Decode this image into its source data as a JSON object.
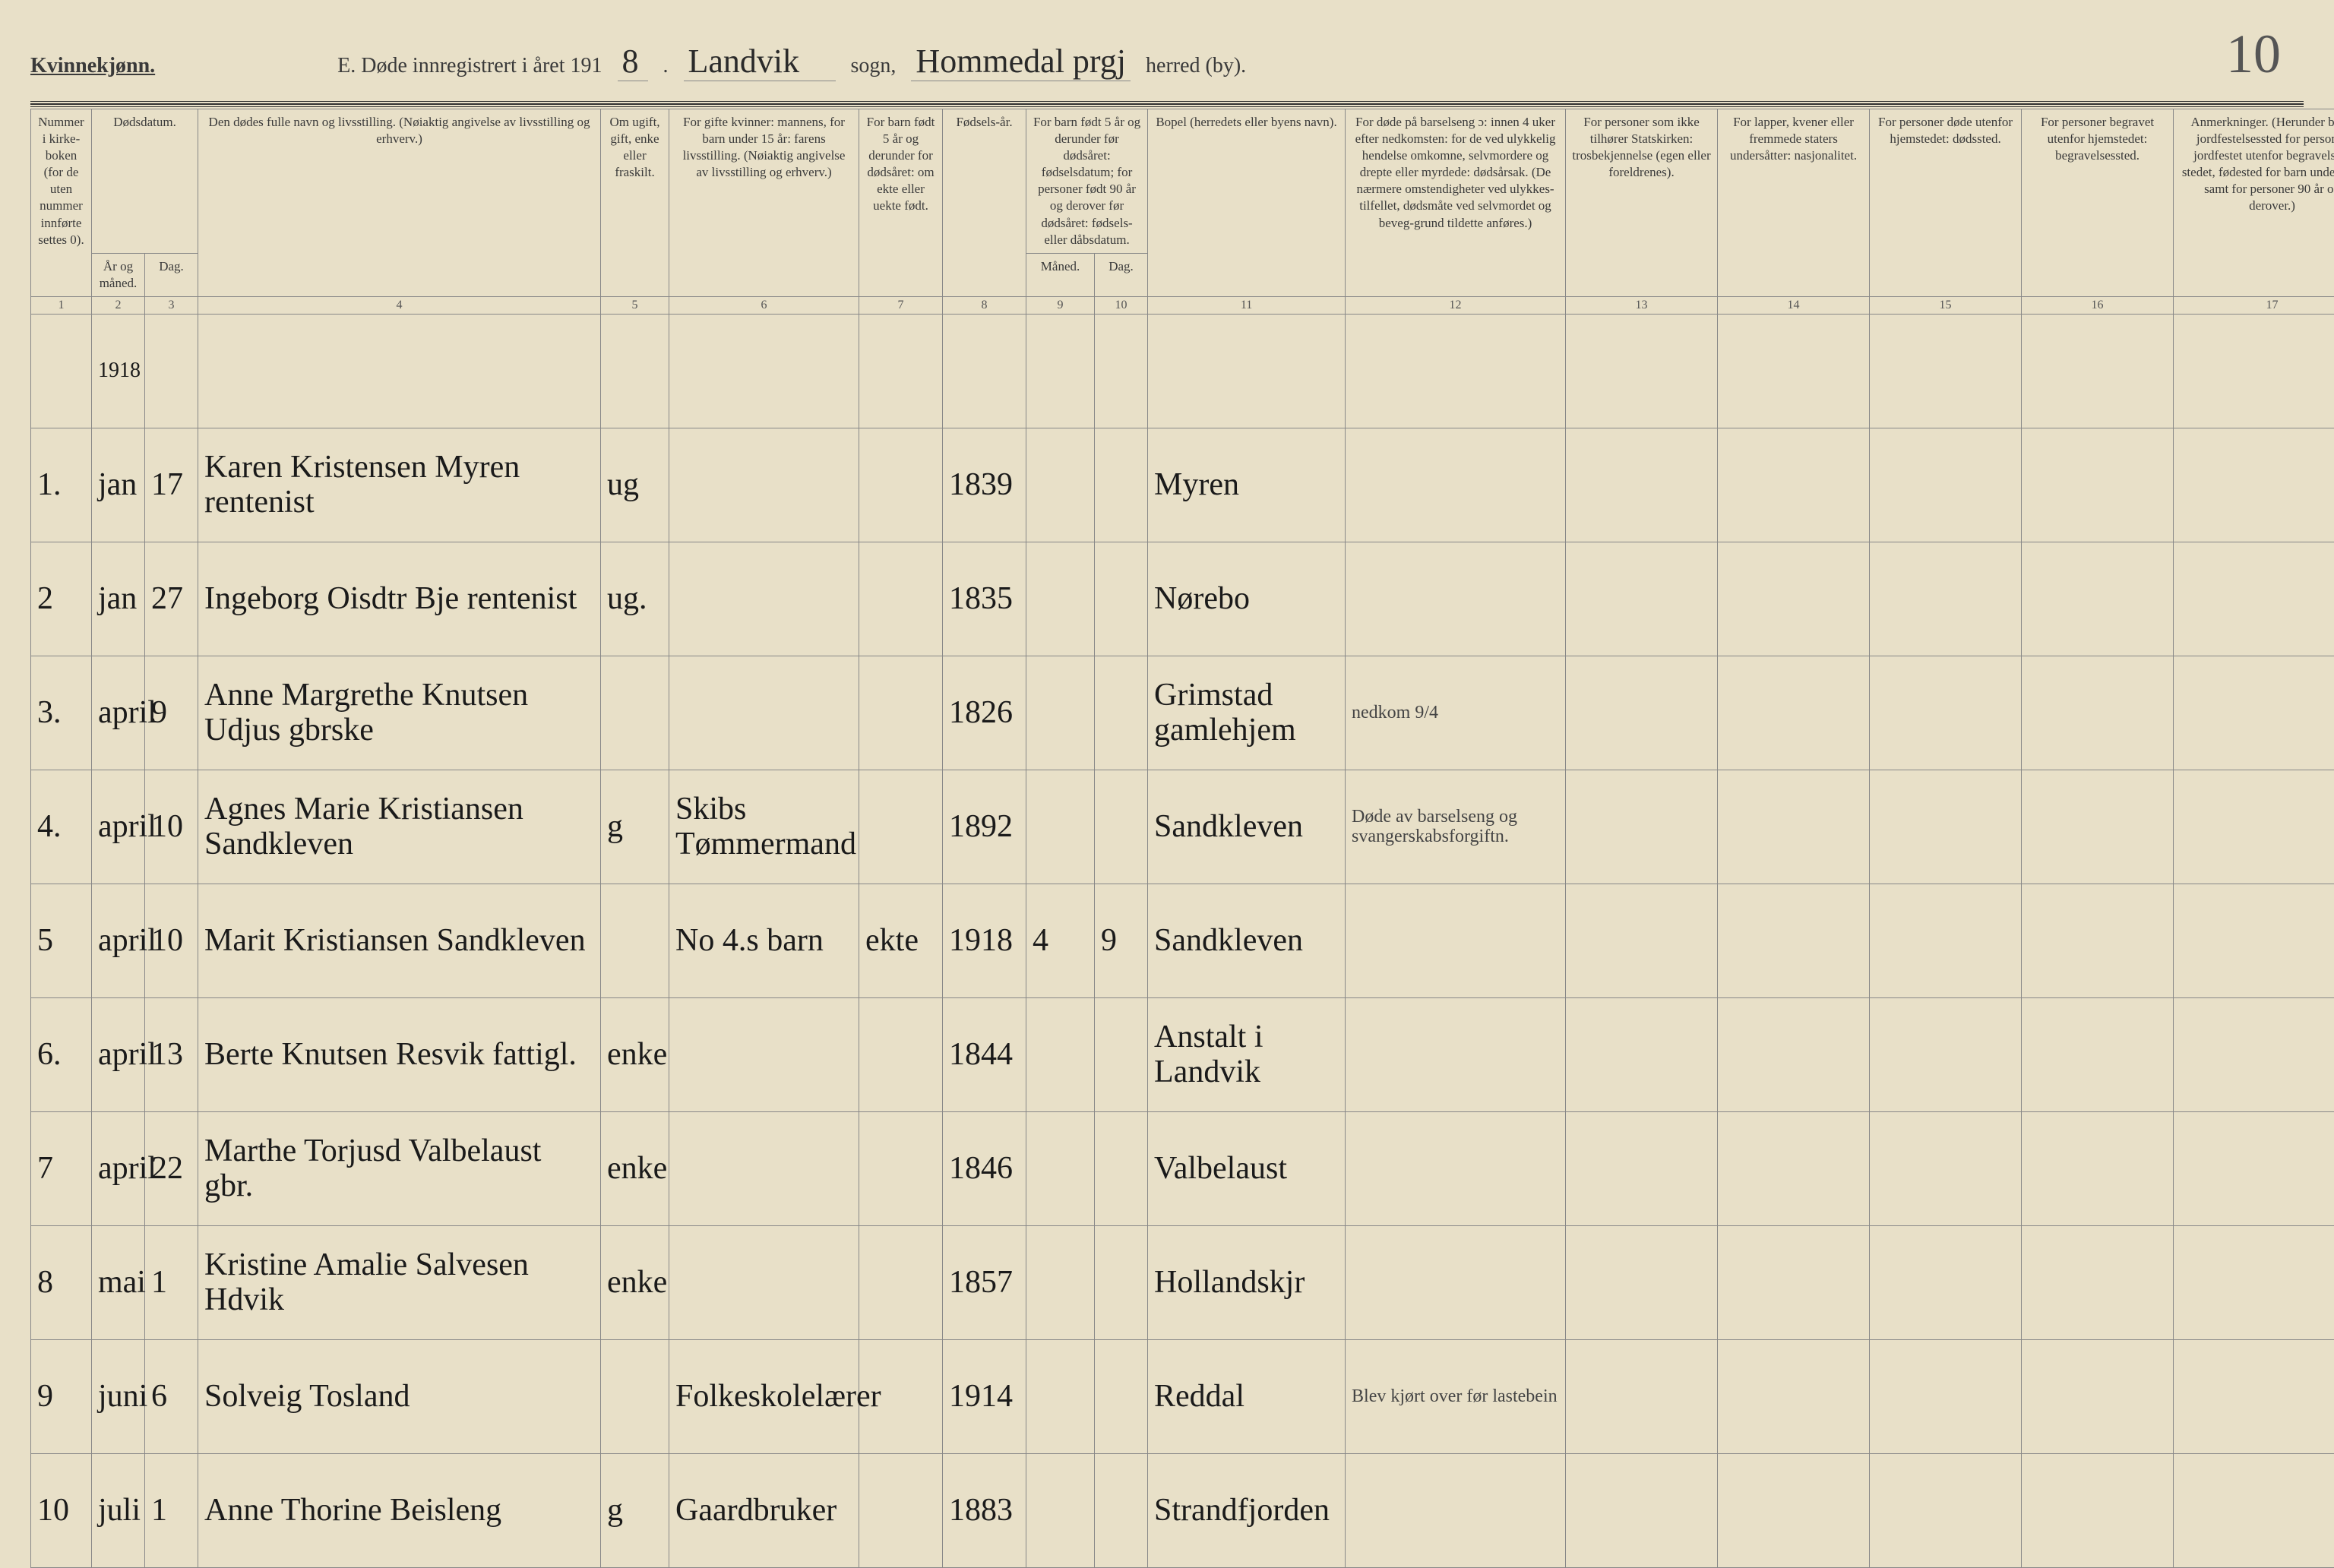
{
  "header": {
    "gender": "Kvinnekjønn.",
    "title_prefix": "E. Døde innregistrert i året 191",
    "year_digit": "8",
    "period": ".",
    "parish_hand": "Landvik",
    "sogn_label": "sogn,",
    "district_hand": "Hommedal prgj",
    "herred_label": "herred (by).",
    "page_number": "10"
  },
  "columns": {
    "num_header": "Nummer i kirke-boken (for de uten nummer innførte settes 0).",
    "dodsdatum": "Dødsdatum.",
    "aar_maaned": "År og måned.",
    "dag": "Dag.",
    "name": "Den dødes fulle navn og livsstilling. (Nøiaktig angivelse av livsstilling og erhverv.)",
    "marital": "Om ugift, gift, enke eller fraskilt.",
    "spouse": "For gifte kvinner: mannens, for barn under 15 år: farens livsstilling. (Nøiaktig angivelse av livsstilling og erhverv.)",
    "barn5": "For barn født 5 år og derunder for dødsåret: om ekte eller uekte født.",
    "fodselsaar": "Fødsels-år.",
    "barn5b": "For barn født 5 år og derunder før dødsåret: fødselsdatum; for personer født 90 år og derover før dødsåret: fødsels- eller dåbsdatum.",
    "maaned": "Måned.",
    "dag2": "Dag.",
    "bopel": "Bopel (herredets eller byens navn).",
    "cause": "For døde på barselseng ɔ: innen 4 uker efter nedkomsten: for de ved ulykkelig hendelse omkomne, selvmordere og drepte eller myrdede: dødsårsak. (De nærmere omstendigheter ved ulykkes-tilfellet, dødsmåte ved selvmordet og beveg-grund tildette anføres.)",
    "church": "For personer som ikke tilhører Statskirken: trosbekjennelse (egen eller foreldrenes).",
    "lapper": "For lapper, kvener eller fremmede staters undersåtter: nasjonalitet.",
    "dodsted": "For personer døde utenfor hjemstedet: dødssted.",
    "begravelse": "For personer begravet utenfor hjemstedet: begravelsessted.",
    "anm": "Anmerkninger. (Herunder bl. a. jordfestelsessted for personer jordfestet utenfor begravelses-stedet, fødested for barn under 1 år samt for personer 90 år og derover.)"
  },
  "colnums": [
    "1",
    "2",
    "3",
    "4",
    "5",
    "6",
    "7",
    "8",
    "9",
    "10",
    "11",
    "12",
    "13",
    "14",
    "15",
    "16",
    "17"
  ],
  "year_row": "1918",
  "rows": [
    {
      "num": "1.",
      "mon": "jan",
      "day": "17",
      "name": "Karen Kristensen Myren rentenist",
      "mar": "ug",
      "spouse": "",
      "barn": "",
      "year": "1839",
      "m2": "",
      "d2": "",
      "place": "Myren",
      "cause": "",
      "c13": "",
      "c14": "",
      "c15": "",
      "c16": "",
      "c17": ""
    },
    {
      "num": "2",
      "mon": "jan",
      "day": "27",
      "name": "Ingeborg Oisdtr Bje rentenist",
      "mar": "ug.",
      "spouse": "",
      "barn": "",
      "year": "1835",
      "m2": "",
      "d2": "",
      "place": "Nørebo",
      "cause": "",
      "c13": "",
      "c14": "",
      "c15": "",
      "c16": "",
      "c17": ""
    },
    {
      "num": "3.",
      "mon": "april",
      "day": "9",
      "name": "Anne Margrethe Knutsen Udjus gbrske",
      "mar": "",
      "spouse": "",
      "barn": "",
      "year": "1826",
      "m2": "",
      "d2": "",
      "place": "Grimstad gamlehjem",
      "cause": "nedkom 9/4",
      "c13": "",
      "c14": "",
      "c15": "",
      "c16": "",
      "c17": ""
    },
    {
      "num": "4.",
      "mon": "april",
      "day": "10",
      "name": "Agnes Marie Kristiansen Sandkleven",
      "mar": "g",
      "spouse": "Skibs Tømmermand",
      "barn": "",
      "year": "1892",
      "m2": "",
      "d2": "",
      "place": "Sandkleven",
      "cause": "Døde av barselseng og svangerskabsforgiftn.",
      "c13": "",
      "c14": "",
      "c15": "",
      "c16": "",
      "c17": ""
    },
    {
      "num": "5",
      "mon": "april",
      "day": "10",
      "name": "Marit Kristiansen Sandkleven",
      "mar": "",
      "spouse": "No 4.s barn",
      "barn": "ekte",
      "year": "1918",
      "m2": "4",
      "d2": "9",
      "place": "Sandkleven",
      "cause": "",
      "c13": "",
      "c14": "",
      "c15": "",
      "c16": "",
      "c17": ""
    },
    {
      "num": "6.",
      "mon": "april",
      "day": "13",
      "name": "Berte Knutsen Resvik fattigl.",
      "mar": "enke",
      "spouse": "",
      "barn": "",
      "year": "1844",
      "m2": "",
      "d2": "",
      "place": "Anstalt i Landvik",
      "cause": "",
      "c13": "",
      "c14": "",
      "c15": "",
      "c16": "",
      "c17": ""
    },
    {
      "num": "7",
      "mon": "april",
      "day": "22",
      "name": "Marthe Torjusd Valbelaust gbr.",
      "mar": "enke",
      "spouse": "",
      "barn": "",
      "year": "1846",
      "m2": "",
      "d2": "",
      "place": "Valbelaust",
      "cause": "",
      "c13": "",
      "c14": "",
      "c15": "",
      "c16": "",
      "c17": ""
    },
    {
      "num": "8",
      "mon": "mai",
      "day": "1",
      "name": "Kristine Amalie Salvesen Hdvik",
      "mar": "enke",
      "spouse": "",
      "barn": "",
      "year": "1857",
      "m2": "",
      "d2": "",
      "place": "Hollandskjr",
      "cause": "",
      "c13": "",
      "c14": "",
      "c15": "",
      "c16": "",
      "c17": ""
    },
    {
      "num": "9",
      "mon": "juni",
      "day": "6",
      "name": "Solveig Tosland",
      "mar": "",
      "spouse": "Folkeskolelærer",
      "barn": "",
      "year": "1914",
      "m2": "",
      "d2": "",
      "place": "Reddal",
      "cause": "Blev kjørt over før lastebein",
      "c13": "",
      "c14": "",
      "c15": "",
      "c16": "",
      "c17": ""
    },
    {
      "num": "10",
      "mon": "juli",
      "day": "1",
      "name": "Anne Thorine Beisleng",
      "mar": "g",
      "spouse": "Gaardbruker",
      "barn": "",
      "year": "1883",
      "m2": "",
      "d2": "",
      "place": "Strandfjorden",
      "cause": "",
      "c13": "",
      "c14": "",
      "c15": "",
      "c16": "",
      "c17": ""
    }
  ]
}
